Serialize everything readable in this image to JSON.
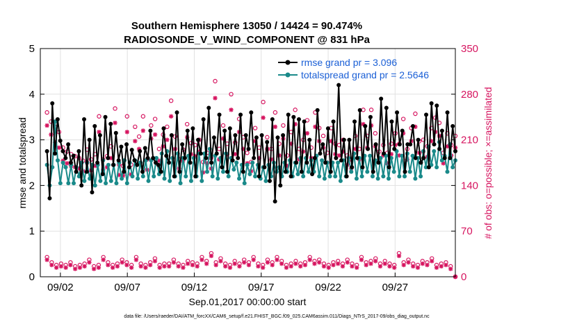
{
  "colors": {
    "rmse": "#000000",
    "spread": "#1a8a8a",
    "obs": "#d6145f",
    "legend_text": "#1a5fd6"
  },
  "chart_data": {
    "type": "line",
    "title": "Southern Hemisphere 13050 / 14424 = 90.474%",
    "subtitle": "RADIOSONDE_V_WIND_COMPONENT @ 831 hPa",
    "xlabel": "Sep.01,2017 00:00:00 start",
    "ylabel": "rmse and totalspread",
    "y2label": "# of obs: o=possible; ×=assimilated",
    "ylim": [
      0,
      5
    ],
    "y2lim": [
      0,
      350
    ],
    "xlim": [
      0.5,
      31.5
    ],
    "yticks": [
      "0",
      "1",
      "2",
      "3",
      "4",
      "5"
    ],
    "y2ticks": [
      "0",
      "70",
      "140",
      "210",
      "280",
      "350"
    ],
    "xtick_positions": [
      2,
      7,
      12,
      17,
      22,
      27
    ],
    "xtick_labels": [
      "09/02",
      "09/07",
      "09/12",
      "09/17",
      "09/22",
      "09/27"
    ],
    "footer": "data file: /Users/raeder/DAI/ATM_forcXX/CAM6_setup/f.e21.FHIST_BGC.f09_025.CAM6assim.011/Diags_NTrS_2017-09/obs_diag_output.nc",
    "series": [
      {
        "name": "rmse grand pr = 3.096",
        "values": [
          2.75,
          1.72,
          3.8,
          2.7,
          3.45,
          2.98,
          2.75,
          2.6,
          2.9,
          2.5,
          2.65,
          2.3,
          2.75,
          2.0,
          3.45,
          2.3,
          3.0,
          1.85,
          3.3,
          2.5,
          3.1,
          2.25,
          3.5,
          2.6,
          3.35,
          2.45,
          3.15,
          2.55,
          2.85,
          2.3,
          2.9,
          2.4,
          2.78,
          2.55,
          2.45,
          2.75,
          2.3,
          2.82,
          2.6,
          3.2,
          2.6,
          2.5,
          2.45,
          2.3,
          3.25,
          2.65,
          2.5,
          3.1,
          2.2,
          3.6,
          2.3,
          2.9,
          2.6,
          3.2,
          2.5,
          3.25,
          2.2,
          3.0,
          2.7,
          3.45,
          2.6,
          3.7,
          2.5,
          3.05,
          2.7,
          3.55,
          2.4,
          3.2,
          2.3,
          3.25,
          2.55,
          3.1,
          2.6,
          3.55,
          2.3,
          3.1,
          2.8,
          3.6,
          2.6,
          3.05,
          2.2,
          3.1,
          2.4,
          2.95,
          2.1,
          3.45,
          1.65,
          3.05,
          2.0,
          3.1,
          2.3,
          3.55,
          2.2,
          3.5,
          2.5,
          3.45,
          2.3,
          3.4,
          2.5,
          3.0,
          2.25,
          2.6,
          3.65,
          2.7,
          2.9,
          2.5,
          3.25,
          2.3,
          3.4,
          2.6,
          4.2,
          2.55,
          3.0,
          2.2,
          3.0,
          2.4,
          3.4,
          2.6,
          3.65,
          2.4,
          3.3,
          2.8,
          3.5,
          2.3,
          2.9,
          2.5,
          3.9,
          2.7,
          3.7,
          2.4,
          3.4,
          2.8,
          3.6,
          2.9,
          3.2,
          2.3,
          2.9,
          2.9,
          3.3,
          2.6,
          3.0,
          2.5,
          2.6,
          3.55,
          2.4,
          3.8,
          2.9,
          3.75,
          2.8,
          3.2,
          2.6,
          3.6,
          2.6,
          3.3,
          2.75
        ]
      },
      {
        "name": "totalspread grand pr = 2.5646",
        "values": [
          2.45,
          2.0,
          2.4,
          3.4,
          2.55,
          2.05,
          2.5,
          2.4,
          2.05,
          2.45,
          2.05,
          2.4,
          2.2,
          2.5,
          2.1,
          2.5,
          2.15,
          2.45,
          2.0,
          2.45,
          2.1,
          2.55,
          2.05,
          2.45,
          2.1,
          2.45,
          2.05,
          2.5,
          2.15,
          2.55,
          2.05,
          2.5,
          2.2,
          2.55,
          2.15,
          2.5,
          2.2,
          2.55,
          2.1,
          2.55,
          2.2,
          2.6,
          2.25,
          2.7,
          2.15,
          2.75,
          2.1,
          2.6,
          2.2,
          2.7,
          2.05,
          2.6,
          2.2,
          2.65,
          2.1,
          2.6,
          2.2,
          2.7,
          2.1,
          2.7,
          2.3,
          2.8,
          2.2,
          2.65,
          2.15,
          2.6,
          2.3,
          2.7,
          2.2,
          2.6,
          2.35,
          2.5,
          2.15,
          2.45,
          2.05,
          2.45,
          2.25,
          2.5,
          2.2,
          2.45,
          2.15,
          2.4,
          2.1,
          2.45,
          2.2,
          2.5,
          2.3,
          2.4,
          2.2,
          2.5,
          2.3,
          2.55,
          2.2,
          2.5,
          2.25,
          2.6,
          2.2,
          2.6,
          2.3,
          2.55,
          2.3,
          2.65,
          2.2,
          2.55,
          2.15,
          2.5,
          2.2,
          2.5,
          2.2,
          2.5,
          2.1,
          2.55,
          2.2,
          2.6,
          2.3,
          2.7,
          2.15,
          2.6,
          2.2,
          2.65,
          2.3,
          2.65,
          2.2,
          2.55,
          2.15,
          2.6,
          2.2,
          2.65,
          2.15,
          2.6,
          2.3,
          2.75,
          2.2,
          2.65,
          2.2,
          2.7,
          2.3,
          2.65,
          2.15,
          2.6,
          2.2,
          2.75,
          2.4,
          2.85,
          2.45,
          2.75,
          2.4,
          2.95,
          2.55,
          2.65,
          2.3,
          2.9,
          2.4,
          2.55
        ]
      }
    ],
    "obs_possible": [
      252,
      238,
      230,
      222,
      198,
      192,
      188,
      185,
      182,
      178,
      195,
      180,
      188,
      246,
      180,
      185,
      200,
      258,
      172,
      170,
      246,
      172,
      230,
      215,
      246,
      180,
      232,
      242,
      196,
      218,
      230,
      270,
      215,
      180,
      195,
      234,
      205,
      202,
      210,
      176,
      190,
      182,
      300,
      196,
      232,
      204,
      280,
      206,
      242,
      214,
      190,
      176,
      228,
      198,
      268,
      214,
      196,
      252,
      204,
      232,
      186,
      222,
      256,
      196,
      210,
      240,
      198,
      252,
      228,
      216,
      190,
      228,
      204,
      202,
      210,
      186,
      180,
      216,
      196,
      256,
      216,
      256,
      220,
      192,
      202,
      190,
      204,
      220,
      204,
      242,
      196,
      228,
      250,
      208,
      210,
      200,
      228,
      244,
      236,
      190,
      220,
      202,
      216
    ],
    "obs_assimilated": [
      232,
      218,
      206,
      198,
      178,
      174,
      170,
      168,
      166,
      162,
      175,
      163,
      170,
      222,
      164,
      168,
      182,
      236,
      156,
      155,
      222,
      157,
      208,
      196,
      224,
      164,
      212,
      218,
      178,
      200,
      210,
      246,
      196,
      166,
      178,
      214,
      188,
      185,
      192,
      160,
      174,
      166,
      274,
      180,
      212,
      188,
      256,
      188,
      222,
      196,
      174,
      162,
      208,
      182,
      244,
      196,
      180,
      230,
      186,
      212,
      170,
      204,
      234,
      180,
      192,
      220,
      182,
      230,
      208,
      198,
      175,
      208,
      188,
      186,
      192,
      172,
      166,
      196,
      180,
      234,
      198,
      232,
      200,
      176,
      186,
      174,
      188,
      202,
      186,
      220,
      180,
      208,
      230,
      190,
      192,
      184,
      208,
      222,
      216,
      174,
      200,
      186,
      198
    ],
    "obs_possible_low": [
      30,
      22,
      18,
      20,
      18,
      22,
      16,
      18,
      20,
      26,
      16,
      18,
      30,
      22,
      18,
      20,
      26,
      22,
      18,
      30,
      20,
      18,
      22,
      28,
      18,
      20,
      20,
      26,
      20,
      18,
      24,
      22,
      20,
      30,
      24,
      36,
      22,
      28,
      20,
      18,
      24,
      20,
      26,
      22,
      30,
      20,
      18,
      26,
      22,
      30,
      24,
      18,
      20,
      24,
      20,
      22,
      30,
      24,
      26,
      20,
      18,
      22,
      24,
      20,
      26,
      20,
      18,
      30,
      22,
      24,
      28,
      20,
      24,
      20,
      18,
      36,
      22,
      26,
      20,
      18,
      24,
      22,
      28,
      18,
      20,
      22,
      16,
      0
    ],
    "obs_assimilated_low": [
      26,
      18,
      14,
      16,
      14,
      18,
      12,
      14,
      16,
      22,
      12,
      14,
      26,
      18,
      14,
      16,
      22,
      18,
      14,
      26,
      16,
      14,
      18,
      24,
      14,
      16,
      16,
      22,
      16,
      14,
      20,
      18,
      16,
      26,
      20,
      32,
      18,
      24,
      16,
      14,
      20,
      16,
      22,
      18,
      26,
      16,
      14,
      22,
      18,
      26,
      20,
      14,
      16,
      20,
      16,
      18,
      26,
      20,
      22,
      16,
      14,
      18,
      20,
      16,
      22,
      16,
      14,
      26,
      18,
      20,
      24,
      16,
      20,
      16,
      14,
      32,
      18,
      22,
      16,
      14,
      20,
      18,
      24,
      14,
      16,
      18,
      12,
      0
    ]
  }
}
